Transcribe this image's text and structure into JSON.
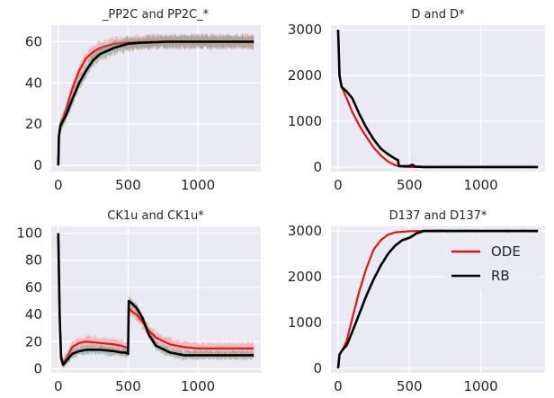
{
  "colors": {
    "ode": "#ee1111",
    "rb": "#000000",
    "background": "#eaeaf2",
    "grid": "#ffffff",
    "band_ode": "#f08080",
    "band_rb": "#6a8c6a"
  },
  "legend": {
    "placement": "upper-right",
    "panel": 3,
    "entries": [
      "ODE",
      "RB"
    ]
  },
  "chart_data": [
    {
      "type": "line",
      "title": "_PP2C and PP2C_*",
      "xlim": [
        -50,
        1450
      ],
      "ylim": [
        -3,
        68
      ],
      "xticks": [
        0,
        500,
        1000
      ],
      "yticks": [
        0,
        20,
        40,
        60
      ],
      "grid": true,
      "series": [
        {
          "name": "ODE",
          "band": 3,
          "points": [
            [
              0,
              0
            ],
            [
              5,
              15
            ],
            [
              15,
              20
            ],
            [
              30,
              22
            ],
            [
              60,
              28
            ],
            [
              100,
              37
            ],
            [
              150,
              46
            ],
            [
              200,
              52
            ],
            [
              250,
              55
            ],
            [
              300,
              57
            ],
            [
              400,
              59
            ],
            [
              500,
              59.5
            ],
            [
              600,
              59.8
            ],
            [
              800,
              60
            ],
            [
              1000,
              60
            ],
            [
              1200,
              60
            ],
            [
              1400,
              60
            ]
          ]
        },
        {
          "name": "RB",
          "band": 3,
          "points": [
            [
              0,
              0
            ],
            [
              5,
              14
            ],
            [
              15,
              19
            ],
            [
              30,
              21
            ],
            [
              60,
              25
            ],
            [
              100,
              32
            ],
            [
              150,
              40
            ],
            [
              200,
              46
            ],
            [
              250,
              51
            ],
            [
              300,
              54
            ],
            [
              400,
              57
            ],
            [
              500,
              59
            ],
            [
              600,
              59.5
            ],
            [
              800,
              60
            ],
            [
              1000,
              60
            ],
            [
              1200,
              60
            ],
            [
              1400,
              60
            ]
          ]
        }
      ]
    },
    {
      "type": "line",
      "title": "D and D*",
      "xlim": [
        -50,
        1450
      ],
      "ylim": [
        -100,
        3100
      ],
      "xticks": [
        0,
        500,
        1000
      ],
      "yticks": [
        0,
        1000,
        2000,
        3000
      ],
      "grid": true,
      "series": [
        {
          "name": "ODE",
          "band": 0,
          "points": [
            [
              0,
              3000
            ],
            [
              10,
              2000
            ],
            [
              25,
              1750
            ],
            [
              60,
              1500
            ],
            [
              100,
              1200
            ],
            [
              150,
              900
            ],
            [
              200,
              650
            ],
            [
              250,
              420
            ],
            [
              300,
              250
            ],
            [
              350,
              120
            ],
            [
              400,
              40
            ],
            [
              450,
              10
            ],
            [
              500,
              0
            ],
            [
              1400,
              0
            ]
          ]
        },
        {
          "name": "RB",
          "band": 25,
          "points": [
            [
              0,
              3000
            ],
            [
              10,
              2000
            ],
            [
              25,
              1750
            ],
            [
              60,
              1650
            ],
            [
              100,
              1500
            ],
            [
              150,
              1150
            ],
            [
              200,
              850
            ],
            [
              250,
              600
            ],
            [
              300,
              400
            ],
            [
              350,
              280
            ],
            [
              400,
              180
            ],
            [
              420,
              150
            ],
            [
              425,
              20
            ],
            [
              500,
              20
            ],
            [
              520,
              50
            ],
            [
              540,
              10
            ],
            [
              600,
              0
            ],
            [
              1400,
              0
            ]
          ]
        }
      ]
    },
    {
      "type": "line",
      "title": "CK1u and CK1u*",
      "xlim": [
        -50,
        1450
      ],
      "ylim": [
        -3,
        105
      ],
      "xticks": [
        0,
        500,
        1000
      ],
      "yticks": [
        0,
        20,
        40,
        60,
        80,
        100
      ],
      "grid": true,
      "series": [
        {
          "name": "ODE",
          "band": 4,
          "points": [
            [
              0,
              100
            ],
            [
              10,
              40
            ],
            [
              20,
              10
            ],
            [
              35,
              4
            ],
            [
              60,
              8
            ],
            [
              100,
              16
            ],
            [
              150,
              19
            ],
            [
              200,
              20
            ],
            [
              300,
              19
            ],
            [
              400,
              18
            ],
            [
              450,
              17
            ],
            [
              480,
              16
            ],
            [
              500,
              15
            ],
            [
              505,
              45
            ],
            [
              530,
              42
            ],
            [
              560,
              40
            ],
            [
              600,
              35
            ],
            [
              650,
              28
            ],
            [
              700,
              23
            ],
            [
              800,
              18
            ],
            [
              900,
              16
            ],
            [
              1000,
              15
            ],
            [
              1200,
              15
            ],
            [
              1400,
              15
            ]
          ]
        },
        {
          "name": "RB",
          "band": 3,
          "points": [
            [
              0,
              100
            ],
            [
              10,
              40
            ],
            [
              20,
              8
            ],
            [
              35,
              3
            ],
            [
              60,
              6
            ],
            [
              100,
              11
            ],
            [
              150,
              13
            ],
            [
              200,
              14
            ],
            [
              300,
              14
            ],
            [
              400,
              13
            ],
            [
              450,
              12
            ],
            [
              480,
              12
            ],
            [
              500,
              11
            ],
            [
              505,
              50
            ],
            [
              530,
              48
            ],
            [
              560,
              45
            ],
            [
              600,
              38
            ],
            [
              650,
              25
            ],
            [
              700,
              17
            ],
            [
              800,
              12
            ],
            [
              900,
              10
            ],
            [
              1000,
              10
            ],
            [
              1200,
              10
            ],
            [
              1400,
              10
            ]
          ]
        }
      ]
    },
    {
      "type": "line",
      "title": "D137 and D137*",
      "xlim": [
        -50,
        1450
      ],
      "ylim": [
        -100,
        3100
      ],
      "xticks": [
        0,
        500,
        1000
      ],
      "yticks": [
        0,
        1000,
        2000,
        3000
      ],
      "grid": true,
      "series": [
        {
          "name": "ODE",
          "band": 0,
          "points": [
            [
              0,
              0
            ],
            [
              10,
              300
            ],
            [
              30,
              400
            ],
            [
              60,
              600
            ],
            [
              100,
              1100
            ],
            [
              150,
              1700
            ],
            [
              200,
              2200
            ],
            [
              250,
              2600
            ],
            [
              300,
              2800
            ],
            [
              350,
              2920
            ],
            [
              400,
              2970
            ],
            [
              500,
              2995
            ],
            [
              600,
              3000
            ],
            [
              1400,
              3000
            ]
          ]
        },
        {
          "name": "RB",
          "band": 30,
          "points": [
            [
              0,
              0
            ],
            [
              10,
              300
            ],
            [
              30,
              400
            ],
            [
              60,
              500
            ],
            [
              100,
              800
            ],
            [
              150,
              1200
            ],
            [
              200,
              1600
            ],
            [
              250,
              1950
            ],
            [
              300,
              2250
            ],
            [
              350,
              2500
            ],
            [
              400,
              2680
            ],
            [
              450,
              2800
            ],
            [
              500,
              2850
            ],
            [
              550,
              2950
            ],
            [
              600,
              3000
            ],
            [
              1400,
              3000
            ]
          ]
        }
      ]
    }
  ]
}
